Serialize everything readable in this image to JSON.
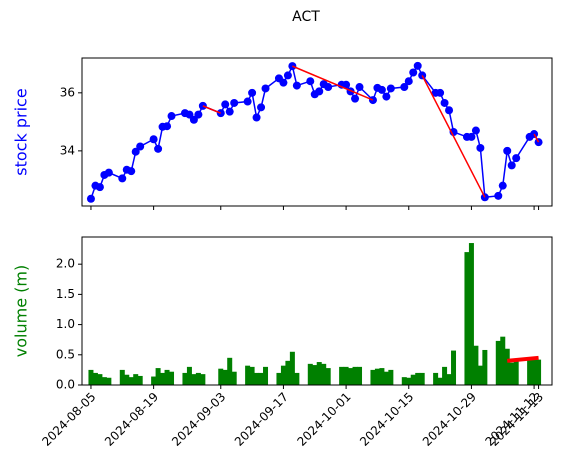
{
  "title": "ACT",
  "chart_data": [
    {
      "type": "line",
      "ylabel": "stock price",
      "color": "#0000ff",
      "ylabel_color": "#0000ff",
      "x": [
        "2024-08-05",
        "2024-08-06",
        "2024-08-07",
        "2024-08-08",
        "2024-08-09",
        "2024-08-12",
        "2024-08-13",
        "2024-08-14",
        "2024-08-15",
        "2024-08-16",
        "2024-08-19",
        "2024-08-20",
        "2024-08-21",
        "2024-08-22",
        "2024-08-23",
        "2024-08-26",
        "2024-08-27",
        "2024-08-28",
        "2024-08-29",
        "2024-08-30",
        "2024-09-03",
        "2024-09-04",
        "2024-09-05",
        "2024-09-06",
        "2024-09-09",
        "2024-09-10",
        "2024-09-11",
        "2024-09-12",
        "2024-09-13",
        "2024-09-16",
        "2024-09-17",
        "2024-09-18",
        "2024-09-19",
        "2024-09-20",
        "2024-09-23",
        "2024-09-24",
        "2024-09-25",
        "2024-09-26",
        "2024-09-27",
        "2024-09-30",
        "2024-10-01",
        "2024-10-02",
        "2024-10-03",
        "2024-10-04",
        "2024-10-07",
        "2024-10-08",
        "2024-10-09",
        "2024-10-10",
        "2024-10-11",
        "2024-10-14",
        "2024-10-15",
        "2024-10-16",
        "2024-10-17",
        "2024-10-18",
        "2024-10-21",
        "2024-10-22",
        "2024-10-23",
        "2024-10-24",
        "2024-10-25",
        "2024-10-28",
        "2024-10-29",
        "2024-10-30",
        "2024-10-31",
        "2024-11-01",
        "2024-11-04",
        "2024-11-05",
        "2024-11-06",
        "2024-11-07",
        "2024-11-08",
        "2024-11-11",
        "2024-11-12",
        "2024-11-13"
      ],
      "values": [
        32.35,
        32.8,
        32.75,
        33.17,
        33.25,
        33.05,
        33.35,
        33.3,
        33.97,
        34.15,
        34.4,
        34.07,
        34.83,
        34.85,
        35.2,
        35.3,
        35.25,
        35.07,
        35.25,
        35.55,
        35.3,
        35.6,
        35.35,
        35.65,
        35.7,
        36.0,
        35.15,
        35.5,
        36.15,
        36.5,
        36.35,
        36.6,
        36.92,
        36.25,
        36.4,
        35.95,
        36.05,
        36.3,
        36.2,
        36.28,
        36.28,
        36.05,
        35.8,
        36.2,
        35.75,
        36.17,
        36.1,
        35.87,
        36.15,
        36.2,
        36.4,
        36.7,
        36.93,
        36.6,
        36.0,
        36.0,
        35.65,
        35.4,
        34.65,
        34.48,
        34.48,
        34.7,
        34.1,
        32.4,
        32.45,
        32.8,
        34.0,
        33.5,
        33.75,
        34.48,
        34.58,
        34.3
      ],
      "trend_color": "#ff0000",
      "trend_lines": [
        {
          "x": [
            "2024-08-30",
            "2024-09-03"
          ],
          "y": [
            35.55,
            35.3
          ]
        },
        {
          "x": [
            "2024-09-19",
            "2024-10-07"
          ],
          "y": [
            36.92,
            35.75
          ]
        },
        {
          "x": [
            "2024-10-18",
            "2024-11-01"
          ],
          "y": [
            36.6,
            32.4
          ]
        },
        {
          "x": [
            "2024-11-12",
            "2024-11-13"
          ],
          "y": [
            34.58,
            34.3
          ]
        }
      ],
      "xlim": [
        "2024-08-03",
        "2024-11-16"
      ],
      "ylim": [
        32.1,
        37.2
      ],
      "yticks": [
        34,
        36
      ]
    },
    {
      "type": "bar",
      "ylabel": "volume (m)",
      "color": "#008000",
      "ylabel_color": "#008000",
      "x": [
        "2024-08-05",
        "2024-08-06",
        "2024-08-07",
        "2024-08-08",
        "2024-08-09",
        "2024-08-12",
        "2024-08-13",
        "2024-08-14",
        "2024-08-15",
        "2024-08-16",
        "2024-08-19",
        "2024-08-20",
        "2024-08-21",
        "2024-08-22",
        "2024-08-23",
        "2024-08-26",
        "2024-08-27",
        "2024-08-28",
        "2024-08-29",
        "2024-08-30",
        "2024-09-03",
        "2024-09-04",
        "2024-09-05",
        "2024-09-06",
        "2024-09-09",
        "2024-09-10",
        "2024-09-11",
        "2024-09-12",
        "2024-09-13",
        "2024-09-16",
        "2024-09-17",
        "2024-09-18",
        "2024-09-19",
        "2024-09-20",
        "2024-09-23",
        "2024-09-24",
        "2024-09-25",
        "2024-09-26",
        "2024-09-27",
        "2024-09-30",
        "2024-10-01",
        "2024-10-02",
        "2024-10-03",
        "2024-10-04",
        "2024-10-07",
        "2024-10-08",
        "2024-10-09",
        "2024-10-10",
        "2024-10-11",
        "2024-10-14",
        "2024-10-15",
        "2024-10-16",
        "2024-10-17",
        "2024-10-18",
        "2024-10-21",
        "2024-10-22",
        "2024-10-23",
        "2024-10-24",
        "2024-10-25",
        "2024-10-28",
        "2024-10-29",
        "2024-10-30",
        "2024-10-31",
        "2024-11-01",
        "2024-11-04",
        "2024-11-05",
        "2024-11-06",
        "2024-11-07",
        "2024-11-08",
        "2024-11-11",
        "2024-11-12",
        "2024-11-13"
      ],
      "values": [
        0.25,
        0.2,
        0.18,
        0.13,
        0.12,
        0.25,
        0.17,
        0.13,
        0.18,
        0.15,
        0.14,
        0.28,
        0.2,
        0.25,
        0.22,
        0.2,
        0.3,
        0.18,
        0.2,
        0.18,
        0.27,
        0.25,
        0.45,
        0.22,
        0.32,
        0.3,
        0.2,
        0.2,
        0.3,
        0.2,
        0.32,
        0.4,
        0.55,
        0.2,
        0.35,
        0.33,
        0.38,
        0.35,
        0.28,
        0.3,
        0.3,
        0.28,
        0.3,
        0.3,
        0.25,
        0.27,
        0.28,
        0.22,
        0.25,
        0.13,
        0.12,
        0.17,
        0.2,
        0.2,
        0.2,
        0.12,
        0.3,
        0.18,
        0.57,
        2.2,
        2.35,
        0.65,
        0.32,
        0.58,
        0.73,
        0.8,
        0.6,
        0.37,
        0.4,
        0.42,
        0.45,
        0.42
      ],
      "trend_color": "#ff0000",
      "trend_lines": [
        {
          "x": [
            "2024-11-06",
            "2024-11-13"
          ],
          "y": [
            0.4,
            0.45
          ]
        }
      ],
      "xlim": [
        "2024-08-03",
        "2024-11-16"
      ],
      "xticks": [
        "2024-08-05",
        "2024-08-19",
        "2024-09-03",
        "2024-09-17",
        "2024-10-01",
        "2024-10-15",
        "2024-10-29",
        "2024-11-12",
        "2024-11-13"
      ],
      "ylim": [
        0,
        2.45
      ],
      "yticks": [
        {
          "value": 0,
          "label": "0.0"
        },
        0.5,
        {
          "value": 1,
          "label": "1.0"
        },
        1.5,
        {
          "value": 2,
          "label": "2.0"
        }
      ]
    }
  ]
}
